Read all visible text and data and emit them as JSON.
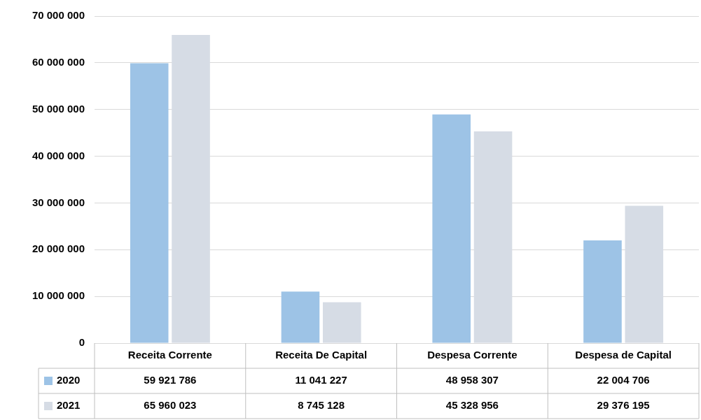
{
  "chart_data": {
    "type": "bar",
    "categories": [
      "Receita Corrente",
      "Receita De Capital",
      "Despesa Corrente",
      "Despesa de Capital"
    ],
    "series": [
      {
        "name": "2020",
        "color": "#9dc3e6",
        "values": [
          59921786,
          11041227,
          48958307,
          22004706
        ],
        "value_labels": [
          "59 921 786",
          "11 041 227",
          "48 958 307",
          "22 004 706"
        ]
      },
      {
        "name": "2021",
        "color": "#d6dce5",
        "values": [
          65960023,
          8745128,
          45328956,
          29376195
        ],
        "value_labels": [
          "65 960 023",
          "8 745 128",
          "45 328 956",
          "29 376 195"
        ]
      }
    ],
    "ylim": [
      0,
      70000000
    ],
    "yticks": [
      0,
      {
        "value": 10000000,
        "label": "10 000 000"
      },
      {
        "value": 20000000,
        "label": "20 000 000"
      },
      {
        "value": 30000000,
        "label": "30 000 000"
      },
      {
        "value": 40000000,
        "label": "40 000 000"
      },
      {
        "value": 50000000,
        "label": "50 000 000"
      },
      {
        "value": 60000000,
        "label": "60 000 000"
      },
      {
        "value": 70000000,
        "label": "70 000 000"
      }
    ],
    "grid": "y",
    "legend": "bottom"
  }
}
